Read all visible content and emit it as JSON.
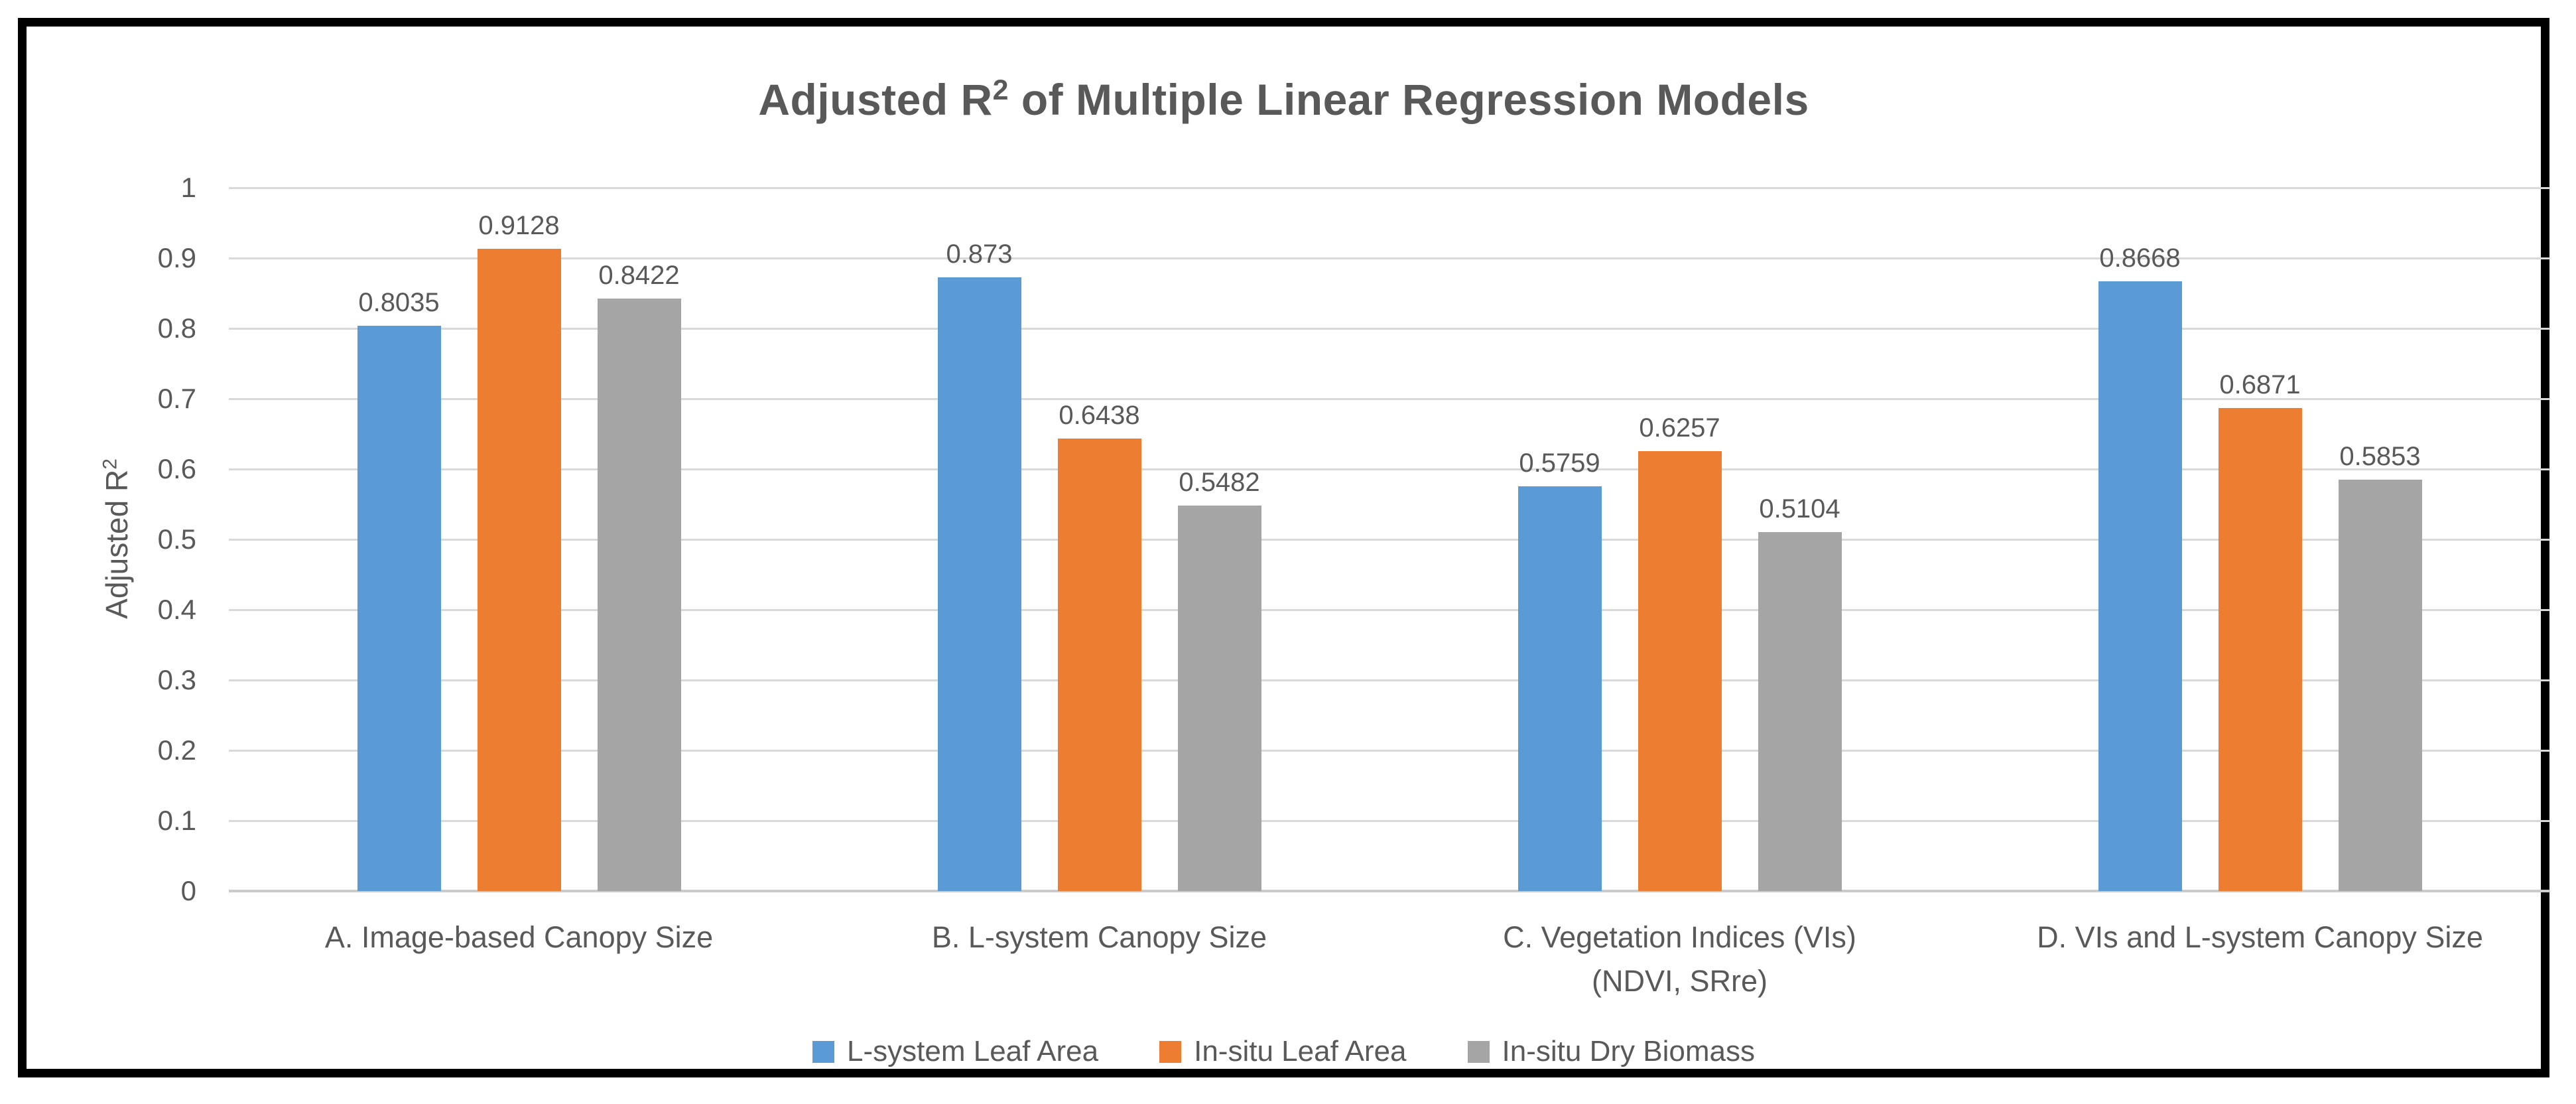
{
  "chart_data": {
    "type": "bar",
    "title": {
      "prefix": "Adjusted R",
      "superscript": "2",
      "suffix": " of Multiple Linear Regression Models"
    },
    "y_axis": {
      "label_prefix": "Adjusted R",
      "label_superscript": "2",
      "min": 0,
      "max": 1,
      "tick_step": 0.1,
      "tick_labels": [
        "0",
        "0.1",
        "0.2",
        "0.3",
        "0.4",
        "0.5",
        "0.6",
        "0.7",
        "0.8",
        "0.9",
        "1"
      ]
    },
    "grid": true,
    "legend_position": "bottom",
    "categories": [
      {
        "lines": [
          "A. Image-based Canopy Size"
        ]
      },
      {
        "lines": [
          "B. L-system Canopy Size"
        ]
      },
      {
        "lines": [
          "C. Vegetation Indices (VIs)",
          "(NDVI, SRre)"
        ]
      },
      {
        "lines": [
          "D. VIs and L-system Canopy Size"
        ]
      }
    ],
    "series": [
      {
        "name": "L-system Leaf Area",
        "color": "#5B9BD5",
        "values": [
          0.8035,
          0.873,
          0.5759,
          0.8668
        ],
        "labels": [
          "0.8035",
          "0.873",
          "0.5759",
          "0.8668"
        ]
      },
      {
        "name": "In-situ Leaf Area",
        "color": "#ED7D31",
        "values": [
          0.9128,
          0.6438,
          0.6257,
          0.6871
        ],
        "labels": [
          "0.9128",
          "0.6438",
          "0.6257",
          "0.6871"
        ]
      },
      {
        "name": "In-situ Dry Biomass",
        "color": "#A5A5A5",
        "values": [
          0.8422,
          0.5482,
          0.5104,
          0.5853
        ],
        "labels": [
          "0.8422",
          "0.5482",
          "0.5104",
          "0.5853"
        ]
      }
    ]
  },
  "style": {
    "text_color": "#595959",
    "gridline_color": "#D9D9D9",
    "axis_line_color": "#CBCBCB",
    "frame_border_color": "#000000",
    "background_color": "#FFFFFF"
  }
}
